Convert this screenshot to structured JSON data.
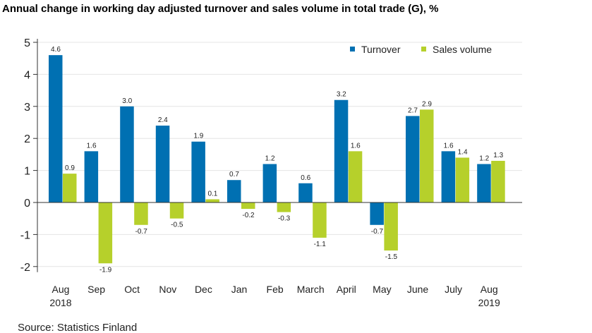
{
  "chart_data": {
    "type": "bar",
    "title": "Annual change in working day adjusted turnover and sales volume in total trade (G), %",
    "source": "Source: Statistics Finland",
    "categories": [
      [
        "Aug",
        "2018"
      ],
      [
        "Sep"
      ],
      [
        "Oct"
      ],
      [
        "Nov"
      ],
      [
        "Dec"
      ],
      [
        "Jan"
      ],
      [
        "Feb"
      ],
      [
        "March"
      ],
      [
        "April"
      ],
      [
        "May"
      ],
      [
        "June"
      ],
      [
        "July"
      ],
      [
        "Aug",
        "2019"
      ]
    ],
    "series": [
      {
        "name": "Turnover",
        "color": "#0070b2",
        "values": [
          4.6,
          1.6,
          3.0,
          2.4,
          1.9,
          0.7,
          1.2,
          0.6,
          3.2,
          -0.7,
          2.7,
          1.6,
          1.2
        ]
      },
      {
        "name": "Sales volume",
        "color": "#b6d02b",
        "values": [
          0.9,
          -1.9,
          -0.7,
          -0.5,
          0.1,
          -0.2,
          -0.3,
          -1.1,
          1.6,
          -1.5,
          2.9,
          1.4,
          1.3
        ]
      }
    ],
    "ylim": [
      -2,
      5
    ],
    "yticks": [
      -2,
      -1,
      0,
      1,
      2,
      3,
      4,
      5
    ],
    "grid": true,
    "legend": "top-right",
    "data_labels": true
  }
}
